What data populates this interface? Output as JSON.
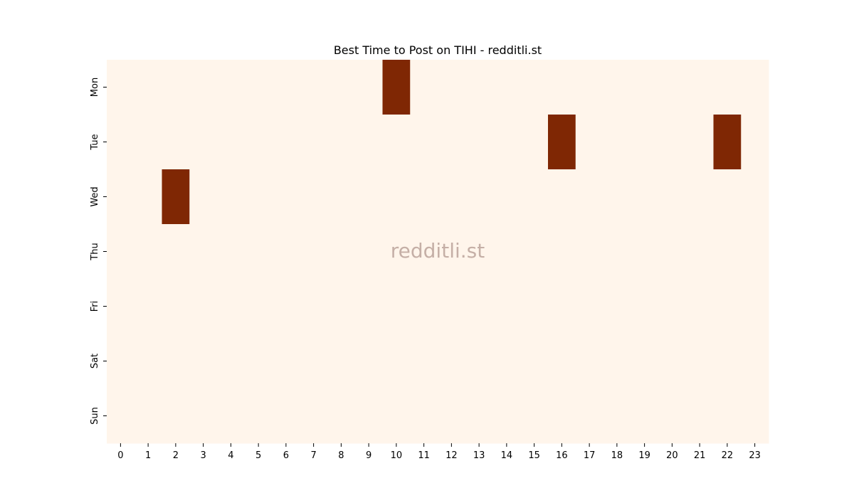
{
  "chart_data": {
    "type": "heatmap",
    "title": "Best Time to Post on TIHI - redditli.st",
    "watermark": "redditli.st",
    "x_categories": [
      "0",
      "1",
      "2",
      "3",
      "4",
      "5",
      "6",
      "7",
      "8",
      "9",
      "10",
      "11",
      "12",
      "13",
      "14",
      "15",
      "16",
      "17",
      "18",
      "19",
      "20",
      "21",
      "22",
      "23"
    ],
    "y_categories": [
      "Mon",
      "Tue",
      "Wed",
      "Thu",
      "Fri",
      "Sat",
      "Sun"
    ],
    "values": [
      [
        0,
        0,
        0,
        0,
        0,
        0,
        0,
        0,
        0,
        0,
        1,
        0,
        0,
        0,
        0,
        0,
        0,
        0,
        0,
        0,
        0,
        0,
        0,
        0
      ],
      [
        0,
        0,
        0,
        0,
        0,
        0,
        0,
        0,
        0,
        0,
        0,
        0,
        0,
        0,
        0,
        0,
        1,
        0,
        0,
        0,
        0,
        0,
        1,
        0
      ],
      [
        0,
        0,
        1,
        0,
        0,
        0,
        0,
        0,
        0,
        0,
        0,
        0,
        0,
        0,
        0,
        0,
        0,
        0,
        0,
        0,
        0,
        0,
        0,
        0
      ],
      [
        0,
        0,
        0,
        0,
        0,
        0,
        0,
        0,
        0,
        0,
        0,
        0,
        0,
        0,
        0,
        0,
        0,
        0,
        0,
        0,
        0,
        0,
        0,
        0
      ],
      [
        0,
        0,
        0,
        0,
        0,
        0,
        0,
        0,
        0,
        0,
        0,
        0,
        0,
        0,
        0,
        0,
        0,
        0,
        0,
        0,
        0,
        0,
        0,
        0
      ],
      [
        0,
        0,
        0,
        0,
        0,
        0,
        0,
        0,
        0,
        0,
        0,
        0,
        0,
        0,
        0,
        0,
        0,
        0,
        0,
        0,
        0,
        0,
        0,
        0
      ],
      [
        0,
        0,
        0,
        0,
        0,
        0,
        0,
        0,
        0,
        0,
        0,
        0,
        0,
        0,
        0,
        0,
        0,
        0,
        0,
        0,
        0,
        0,
        0,
        0
      ]
    ],
    "colors": {
      "low": "#fff5eb",
      "high": "#7f2704"
    },
    "xlabel": "",
    "ylabel": "",
    "grid": false
  }
}
